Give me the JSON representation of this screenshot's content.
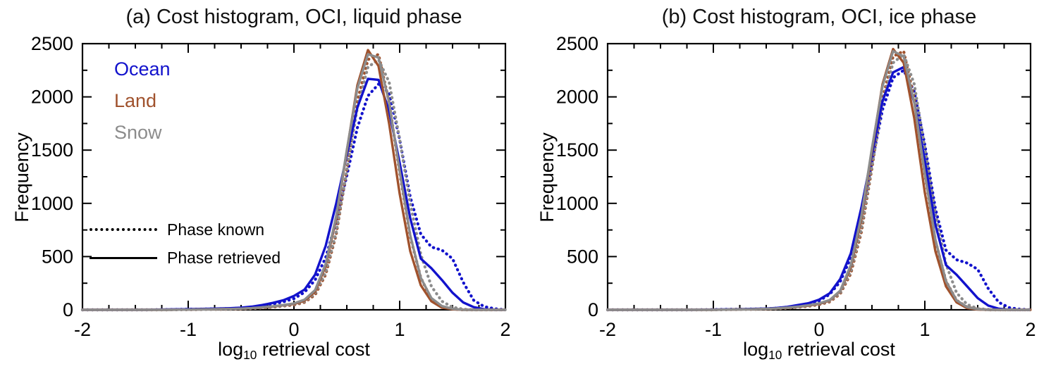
{
  "panels": [
    {
      "title": "(a) Cost histogram, OCI, liquid phase",
      "ylabel": "Frequency",
      "xlabel": {
        "pre": "log",
        "sub": "10",
        "post": " retrieval cost"
      }
    },
    {
      "title": "(b) Cost histogram, OCI, ice phase",
      "ylabel": "Frequency",
      "xlabel": {
        "pre": "log",
        "sub": "10",
        "post": " retrieval cost"
      }
    }
  ],
  "legend": {
    "surfaces": [
      {
        "label": "Ocean",
        "color": "#1212cc"
      },
      {
        "label": "Land",
        "color": "#a0522d"
      },
      {
        "label": "Snow",
        "color": "#8c8c8c"
      }
    ],
    "styles": [
      {
        "label": "Phase known",
        "style": "dotted"
      },
      {
        "label": "Phase retrieved",
        "style": "solid"
      }
    ]
  },
  "chart_data": [
    {
      "type": "line",
      "title": "(a) Cost histogram, OCI, liquid phase",
      "xlabel": "log10 retrieval cost",
      "ylabel": "Frequency",
      "xlim": [
        -2,
        2
      ],
      "ylim": [
        0,
        2500
      ],
      "xticks": [
        -2,
        -1,
        0,
        1,
        2
      ],
      "yticks": [
        0,
        500,
        1000,
        1500,
        2000,
        2500
      ],
      "grid": false,
      "legend_position": "upper-left",
      "x": [
        -2.0,
        -1.8,
        -1.6,
        -1.4,
        -1.2,
        -1.0,
        -0.8,
        -0.6,
        -0.5,
        -0.4,
        -0.3,
        -0.2,
        -0.1,
        0.0,
        0.1,
        0.2,
        0.3,
        0.4,
        0.5,
        0.6,
        0.7,
        0.8,
        0.9,
        1.0,
        1.1,
        1.2,
        1.3,
        1.4,
        1.5,
        1.6,
        1.7,
        1.8,
        1.9,
        2.0
      ],
      "series": [
        {
          "name": "Ocean, phase known",
          "color": "#1212cc",
          "style": "dotted",
          "values": [
            0,
            0,
            0,
            0,
            2,
            5,
            8,
            12,
            16,
            24,
            38,
            55,
            75,
            105,
            165,
            280,
            490,
            830,
            1260,
            1710,
            2010,
            2120,
            2040,
            1600,
            1060,
            710,
            590,
            560,
            480,
            260,
            90,
            30,
            10,
            0
          ]
        },
        {
          "name": "Land, phase known",
          "color": "#a0522d",
          "style": "dotted",
          "values": [
            0,
            0,
            0,
            0,
            0,
            2,
            4,
            6,
            8,
            12,
            18,
            25,
            35,
            45,
            70,
            140,
            330,
            710,
            1310,
            1960,
            2350,
            2400,
            1950,
            1290,
            690,
            300,
            100,
            30,
            8,
            0,
            0,
            0,
            0,
            0
          ]
        },
        {
          "name": "Snow, phase known",
          "color": "#8c8c8c",
          "style": "dotted",
          "values": [
            0,
            0,
            0,
            0,
            0,
            2,
            4,
            7,
            9,
            13,
            20,
            28,
            38,
            50,
            78,
            155,
            350,
            730,
            1310,
            1900,
            2280,
            2350,
            2140,
            1600,
            1000,
            520,
            220,
            80,
            25,
            6,
            0,
            0,
            0,
            0
          ]
        },
        {
          "name": "Ocean, phase retrieved",
          "color": "#1212cc",
          "style": "solid",
          "values": [
            0,
            0,
            0,
            0,
            3,
            6,
            10,
            15,
            20,
            30,
            45,
            65,
            90,
            130,
            190,
            330,
            600,
            1000,
            1450,
            1900,
            2170,
            2160,
            1870,
            1380,
            860,
            480,
            390,
            280,
            160,
            70,
            25,
            5,
            0,
            0
          ]
        },
        {
          "name": "Land, phase retrieved",
          "color": "#a0522d",
          "style": "solid",
          "values": [
            0,
            0,
            0,
            0,
            0,
            2,
            5,
            8,
            10,
            15,
            22,
            30,
            42,
            55,
            85,
            170,
            410,
            860,
            1490,
            2110,
            2440,
            2290,
            1750,
            1090,
            550,
            230,
            80,
            20,
            5,
            0,
            0,
            0,
            0,
            0
          ]
        },
        {
          "name": "Snow, phase retrieved",
          "color": "#8c8c8c",
          "style": "solid",
          "values": [
            0,
            0,
            0,
            0,
            0,
            2,
            5,
            8,
            11,
            16,
            24,
            33,
            45,
            60,
            95,
            185,
            430,
            880,
            1500,
            2080,
            2400,
            2370,
            1950,
            1300,
            700,
            300,
            110,
            35,
            10,
            0,
            0,
            0,
            0,
            0
          ]
        }
      ]
    },
    {
      "type": "line",
      "title": "(b) Cost histogram, OCI, ice phase",
      "xlabel": "log10 retrieval cost",
      "ylabel": "Frequency",
      "xlim": [
        -2,
        2
      ],
      "ylim": [
        0,
        2500
      ],
      "xticks": [
        -2,
        -1,
        0,
        1,
        2
      ],
      "yticks": [
        0,
        500,
        1000,
        1500,
        2000,
        2500
      ],
      "grid": false,
      "legend_position": "none",
      "x": [
        -2.0,
        -1.8,
        -1.6,
        -1.4,
        -1.2,
        -1.0,
        -0.8,
        -0.6,
        -0.5,
        -0.4,
        -0.3,
        -0.2,
        -0.1,
        0.0,
        0.1,
        0.2,
        0.3,
        0.4,
        0.5,
        0.6,
        0.7,
        0.8,
        0.9,
        1.0,
        1.1,
        1.2,
        1.3,
        1.4,
        1.5,
        1.6,
        1.7,
        1.8,
        1.9,
        2.0
      ],
      "series": [
        {
          "name": "Ocean, phase known",
          "color": "#1212cc",
          "style": "dotted",
          "values": [
            0,
            0,
            0,
            0,
            0,
            2,
            5,
            8,
            10,
            15,
            25,
            40,
            55,
            85,
            145,
            265,
            490,
            880,
            1380,
            1880,
            2180,
            2250,
            2050,
            1550,
            950,
            560,
            470,
            440,
            380,
            200,
            70,
            20,
            5,
            0
          ]
        },
        {
          "name": "Land, phase known",
          "color": "#a0522d",
          "style": "dotted",
          "values": [
            0,
            0,
            0,
            0,
            0,
            0,
            3,
            5,
            7,
            10,
            16,
            24,
            34,
            48,
            75,
            150,
            340,
            730,
            1330,
            1980,
            2380,
            2430,
            1980,
            1280,
            650,
            270,
            90,
            25,
            6,
            0,
            0,
            0,
            0,
            0
          ]
        },
        {
          "name": "Snow, phase known",
          "color": "#8c8c8c",
          "style": "dotted",
          "values": [
            0,
            0,
            0,
            0,
            0,
            0,
            3,
            6,
            8,
            11,
            18,
            26,
            37,
            52,
            82,
            160,
            360,
            760,
            1350,
            1950,
            2320,
            2400,
            2120,
            1520,
            900,
            430,
            160,
            50,
            12,
            3,
            0,
            0,
            0,
            0
          ]
        },
        {
          "name": "Ocean, phase retrieved",
          "color": "#1212cc",
          "style": "solid",
          "values": [
            0,
            0,
            0,
            0,
            0,
            2,
            5,
            9,
            12,
            18,
            28,
            45,
            62,
            95,
            155,
            290,
            530,
            960,
            1460,
            1960,
            2230,
            2280,
            1950,
            1400,
            800,
            420,
            330,
            220,
            110,
            40,
            10,
            0,
            0,
            0
          ]
        },
        {
          "name": "Land, phase retrieved",
          "color": "#a0522d",
          "style": "solid",
          "values": [
            0,
            0,
            0,
            0,
            0,
            0,
            3,
            6,
            8,
            12,
            19,
            28,
            40,
            55,
            88,
            175,
            400,
            850,
            1500,
            2120,
            2450,
            2320,
            1800,
            1100,
            550,
            220,
            70,
            15,
            3,
            0,
            0,
            0,
            0,
            0
          ]
        },
        {
          "name": "Snow, phase retrieved",
          "color": "#8c8c8c",
          "style": "solid",
          "values": [
            0,
            0,
            0,
            0,
            0,
            0,
            3,
            6,
            9,
            13,
            21,
            30,
            43,
            60,
            92,
            180,
            420,
            880,
            1520,
            2100,
            2430,
            2380,
            1950,
            1280,
            660,
            270,
            90,
            25,
            6,
            0,
            0,
            0,
            0,
            0
          ]
        }
      ]
    }
  ]
}
